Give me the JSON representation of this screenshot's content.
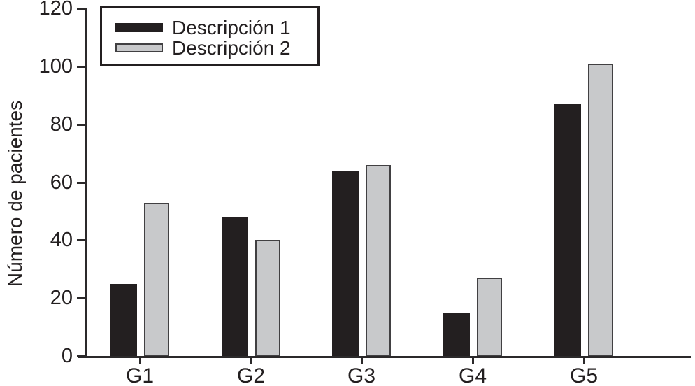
{
  "chart_data": {
    "type": "bar",
    "title": "",
    "xlabel": "",
    "ylabel": "Número de pacientes",
    "categories": [
      "G1",
      "G2",
      "G3",
      "G4",
      "G5"
    ],
    "series": [
      {
        "name": "Descripción 1",
        "color": "#231f20",
        "border_color": "#231f20",
        "values": [
          25,
          48,
          64,
          15,
          87
        ]
      },
      {
        "name": "Descripción 2",
        "color": "#c8c9cb",
        "border_color": "#414042",
        "values": [
          53,
          40,
          66,
          27,
          101
        ]
      }
    ],
    "ylim": [
      0,
      120
    ],
    "yticks": [
      0,
      20,
      40,
      60,
      80,
      100,
      120
    ],
    "grid": false,
    "legend_position": "top-left",
    "axis_color": "#2b292a",
    "background": "#ffffff"
  }
}
